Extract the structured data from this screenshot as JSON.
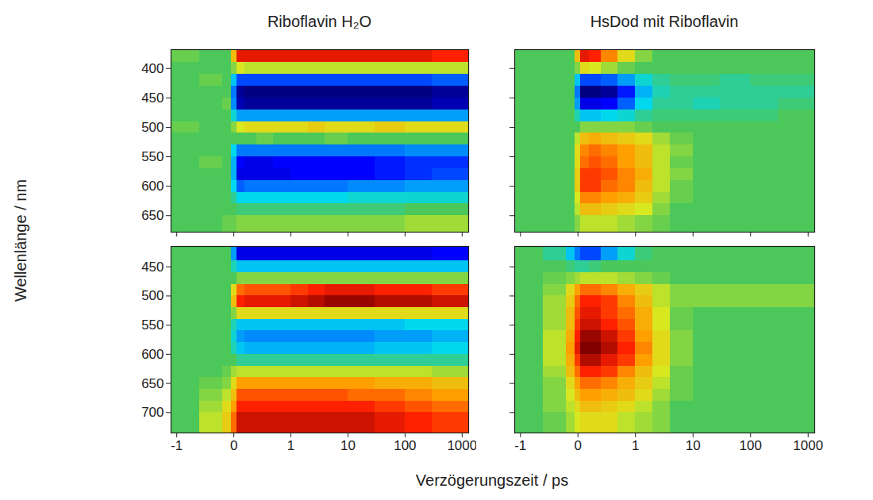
{
  "xlabel": "Verzögerungszeit / ps",
  "ylabel": "Wellenlänge / nm",
  "chart_data": [
    {
      "type": "heatmap",
      "title": "Riboflavin H₂O",
      "x_edges": [
        -1.1,
        -0.6,
        -0.2,
        -0.05,
        0.05,
        0.2,
        0.4,
        0.7,
        1,
        2,
        4,
        10,
        30,
        100,
        300,
        1300
      ],
      "y_edges": [
        368,
        390,
        410,
        430,
        450,
        470,
        490,
        510,
        530,
        550,
        570,
        590,
        610,
        630,
        650,
        678
      ],
      "values": [
        [
          0.05,
          0,
          0,
          0.4,
          0.8,
          0.8,
          0.8,
          0.8,
          0.8,
          0.8,
          0.8,
          0.8,
          0.8,
          0.8,
          0.75
        ],
        [
          0,
          0,
          0,
          0.1,
          0.25,
          0.2,
          0.2,
          0.2,
          0.2,
          0.2,
          0.2,
          0.2,
          0.2,
          0.2,
          0.2
        ],
        [
          0,
          0.05,
          0,
          -0.3,
          -0.6,
          -0.6,
          -0.6,
          -0.6,
          -0.6,
          -0.6,
          -0.6,
          -0.6,
          -0.6,
          -0.6,
          -0.55
        ],
        [
          0,
          0,
          0,
          -0.5,
          -0.95,
          -1,
          -1,
          -1,
          -1,
          -1,
          -1,
          -1,
          -1,
          -1,
          -0.95
        ],
        [
          0,
          0,
          0.05,
          -0.45,
          -0.9,
          -0.95,
          -0.95,
          -0.95,
          -0.95,
          -0.95,
          -0.95,
          -0.95,
          -0.95,
          -0.95,
          -0.9
        ],
        [
          0,
          0,
          0,
          -0.2,
          -0.4,
          -0.4,
          -0.4,
          -0.4,
          -0.4,
          -0.4,
          -0.4,
          -0.4,
          -0.4,
          -0.4,
          -0.4
        ],
        [
          0.05,
          0,
          0,
          0.1,
          0.25,
          0.3,
          0.3,
          0.3,
          0.3,
          0.35,
          0.3,
          0.3,
          0.35,
          0.3,
          0.3
        ],
        [
          0,
          0,
          0,
          0,
          0,
          0,
          0.05,
          0,
          0,
          0,
          0.05,
          0,
          0,
          0,
          0
        ],
        [
          0,
          0,
          0,
          -0.25,
          -0.5,
          -0.5,
          -0.5,
          -0.5,
          -0.5,
          -0.5,
          -0.5,
          -0.5,
          -0.5,
          -0.45,
          -0.45
        ],
        [
          0,
          0.05,
          0,
          -0.35,
          -0.75,
          -0.8,
          -0.8,
          -0.75,
          -0.75,
          -0.75,
          -0.75,
          -0.75,
          -0.7,
          -0.65,
          -0.65
        ],
        [
          0,
          0,
          0,
          -0.35,
          -0.8,
          -0.8,
          -0.8,
          -0.8,
          -0.75,
          -0.75,
          -0.75,
          -0.75,
          -0.7,
          -0.65,
          -0.6
        ],
        [
          0,
          0,
          0,
          -0.25,
          -0.55,
          -0.5,
          -0.5,
          -0.5,
          -0.5,
          -0.5,
          -0.5,
          -0.45,
          -0.45,
          -0.4,
          -0.4
        ],
        [
          0,
          0,
          0,
          -0.1,
          -0.25,
          -0.25,
          -0.25,
          -0.25,
          -0.25,
          -0.25,
          -0.25,
          -0.2,
          -0.2,
          -0.2,
          -0.2
        ],
        [
          0,
          0,
          0,
          0,
          -0.05,
          -0.05,
          -0.05,
          -0.05,
          -0.05,
          -0.05,
          -0.05,
          -0.05,
          -0.05,
          0,
          0
        ],
        [
          0,
          0,
          0.05,
          0.05,
          0.1,
          0.1,
          0.1,
          0.1,
          0.1,
          0.1,
          0.1,
          0.1,
          0.1,
          0.15,
          0.15
        ]
      ],
      "zlim": [
        -1,
        1
      ],
      "xlim": [
        -1.1,
        1300
      ],
      "xticks": [
        -1,
        0,
        1,
        10,
        100,
        1000
      ],
      "ylim": [
        368,
        678
      ],
      "yticks": [
        400,
        450,
        500,
        550,
        600,
        650
      ],
      "tick_labels": "y"
    },
    {
      "type": "heatmap",
      "title": "HsDod mit Riboflavin",
      "x_edges": [
        -1.1,
        -0.6,
        -0.2,
        -0.05,
        0.05,
        0.2,
        0.4,
        0.7,
        1,
        2,
        4,
        10,
        30,
        100,
        300,
        1300
      ],
      "y_edges": [
        368,
        390,
        410,
        430,
        450,
        470,
        490,
        510,
        530,
        550,
        570,
        590,
        610,
        630,
        650,
        678
      ],
      "values": [
        [
          0,
          0,
          0,
          0.4,
          0.8,
          0.75,
          0.55,
          0.3,
          0.1,
          0,
          0,
          0,
          0,
          0,
          0
        ],
        [
          0,
          0,
          0,
          0.1,
          0.3,
          0.25,
          0.15,
          0.05,
          0,
          0,
          0,
          0,
          0,
          0,
          0
        ],
        [
          0,
          0,
          0,
          -0.3,
          -0.6,
          -0.6,
          -0.55,
          -0.4,
          -0.2,
          -0.1,
          -0.05,
          -0.05,
          -0.1,
          -0.05,
          -0.05
        ],
        [
          0,
          0,
          0,
          -0.5,
          -1,
          -1,
          -0.95,
          -0.7,
          -0.35,
          -0.15,
          -0.1,
          -0.1,
          -0.1,
          -0.1,
          -0.1
        ],
        [
          0,
          0,
          0,
          -0.4,
          -0.8,
          -0.8,
          -0.75,
          -0.55,
          -0.25,
          -0.1,
          -0.1,
          -0.15,
          -0.1,
          -0.1,
          -0.05
        ],
        [
          0,
          0,
          0,
          -0.15,
          -0.3,
          -0.3,
          -0.25,
          -0.2,
          -0.1,
          -0.05,
          -0.05,
          -0.05,
          -0.05,
          -0.05,
          0
        ],
        [
          0,
          0,
          0,
          0,
          0.1,
          0.1,
          0.1,
          0.1,
          0.05,
          0,
          0,
          0,
          0,
          0,
          0
        ],
        [
          0,
          0,
          0,
          0.2,
          0.4,
          0.45,
          0.4,
          0.35,
          0.3,
          0.15,
          0.05,
          0,
          0,
          0,
          0
        ],
        [
          0,
          0,
          0,
          0.3,
          0.55,
          0.6,
          0.55,
          0.5,
          0.4,
          0.2,
          0.1,
          0,
          0,
          0,
          0
        ],
        [
          0,
          0,
          0,
          0.3,
          0.6,
          0.65,
          0.6,
          0.5,
          0.4,
          0.2,
          0.05,
          0,
          0,
          0,
          0
        ],
        [
          0,
          0,
          0,
          0.35,
          0.7,
          0.7,
          0.65,
          0.55,
          0.45,
          0.2,
          0.1,
          0,
          0,
          0,
          0
        ],
        [
          0,
          0,
          0,
          0.35,
          0.7,
          0.7,
          0.6,
          0.55,
          0.4,
          0.2,
          0.05,
          0,
          0,
          0,
          0
        ],
        [
          0,
          0,
          0,
          0.25,
          0.55,
          0.55,
          0.5,
          0.45,
          0.35,
          0.15,
          0.05,
          0,
          0,
          0,
          0
        ],
        [
          0,
          0,
          0,
          0.2,
          0.4,
          0.4,
          0.35,
          0.3,
          0.25,
          0.1,
          0,
          0,
          0,
          0,
          0
        ],
        [
          0,
          0,
          0,
          0.1,
          0.2,
          0.2,
          0.2,
          0.15,
          0.1,
          0.05,
          0,
          0,
          0,
          0,
          0
        ]
      ],
      "zlim": [
        -1,
        1
      ],
      "xlim": [
        -1.1,
        1300
      ],
      "xticks": [
        -1,
        0,
        1,
        10,
        100,
        1000
      ],
      "ylim": [
        368,
        678
      ],
      "yticks": [
        400,
        450,
        500,
        550,
        600,
        650
      ],
      "tick_labels": false
    },
    {
      "type": "heatmap",
      "x_edges": [
        -1.1,
        -0.6,
        -0.2,
        -0.05,
        0.05,
        0.2,
        0.4,
        0.7,
        1,
        2,
        4,
        10,
        30,
        100,
        300,
        1300
      ],
      "y_edges": [
        415,
        440,
        460,
        480,
        500,
        520,
        540,
        560,
        580,
        600,
        620,
        640,
        660,
        680,
        700,
        735
      ],
      "values": [
        [
          0,
          0,
          0,
          -0.4,
          -0.8,
          -0.8,
          -0.8,
          -0.8,
          -0.8,
          -0.8,
          -0.8,
          -0.8,
          -0.8,
          -0.8,
          -0.75
        ],
        [
          0,
          0,
          0,
          -0.15,
          -0.3,
          -0.3,
          -0.3,
          -0.3,
          -0.3,
          -0.3,
          -0.3,
          -0.3,
          -0.3,
          -0.3,
          -0.3
        ],
        [
          0,
          0,
          0,
          0,
          0.1,
          0.1,
          0.1,
          0.1,
          0.1,
          0.1,
          0.1,
          0.1,
          0.1,
          0.1,
          0.1
        ],
        [
          0,
          0,
          0,
          0.3,
          0.6,
          0.65,
          0.65,
          0.65,
          0.7,
          0.75,
          0.8,
          0.8,
          0.75,
          0.75,
          0.7
        ],
        [
          0,
          0,
          0,
          0.4,
          0.75,
          0.8,
          0.8,
          0.8,
          0.85,
          0.9,
          0.95,
          0.95,
          0.9,
          0.9,
          0.85
        ],
        [
          0,
          0,
          0,
          0.1,
          0.3,
          0.3,
          0.3,
          0.3,
          0.3,
          0.3,
          0.3,
          0.3,
          0.3,
          0.3,
          0.3
        ],
        [
          0,
          0,
          0,
          -0.15,
          -0.3,
          -0.3,
          -0.3,
          -0.3,
          -0.3,
          -0.3,
          -0.3,
          -0.3,
          -0.3,
          -0.25,
          -0.25
        ],
        [
          0,
          0,
          0,
          -0.2,
          -0.4,
          -0.45,
          -0.45,
          -0.45,
          -0.45,
          -0.45,
          -0.45,
          -0.45,
          -0.4,
          -0.4,
          -0.35
        ],
        [
          0,
          0,
          0,
          -0.15,
          -0.3,
          -0.35,
          -0.35,
          -0.35,
          -0.35,
          -0.35,
          -0.35,
          -0.35,
          -0.3,
          -0.3,
          -0.25
        ],
        [
          0,
          0,
          0,
          0,
          -0.1,
          -0.1,
          -0.1,
          -0.1,
          -0.1,
          -0.1,
          -0.1,
          -0.1,
          -0.1,
          -0.1,
          -0.1
        ],
        [
          0,
          0,
          0.05,
          0.15,
          0.2,
          0.2,
          0.2,
          0.2,
          0.2,
          0.2,
          0.2,
          0.2,
          0.2,
          0.2,
          0.15
        ],
        [
          0,
          0.05,
          0.1,
          0.3,
          0.5,
          0.5,
          0.5,
          0.5,
          0.5,
          0.5,
          0.5,
          0.5,
          0.45,
          0.45,
          0.4
        ],
        [
          0,
          0.1,
          0.2,
          0.4,
          0.65,
          0.65,
          0.65,
          0.65,
          0.65,
          0.65,
          0.65,
          0.6,
          0.6,
          0.55,
          0.5
        ],
        [
          0,
          0.15,
          0.3,
          0.5,
          0.75,
          0.75,
          0.75,
          0.75,
          0.75,
          0.75,
          0.75,
          0.75,
          0.7,
          0.65,
          0.6
        ],
        [
          0,
          0.2,
          0.35,
          0.6,
          0.85,
          0.85,
          0.85,
          0.85,
          0.85,
          0.85,
          0.85,
          0.85,
          0.8,
          0.75,
          0.7
        ]
      ],
      "zlim": [
        -1,
        1
      ],
      "xlim": [
        -1.1,
        1300
      ],
      "xticks": [
        -1,
        0,
        1,
        10,
        100,
        1000
      ],
      "ylim": [
        415,
        735
      ],
      "yticks": [
        450,
        500,
        550,
        600,
        650,
        700
      ]
    },
    {
      "type": "heatmap",
      "x_edges": [
        -1.1,
        -0.6,
        -0.2,
        -0.05,
        0.05,
        0.2,
        0.4,
        0.7,
        1,
        2,
        4,
        10,
        30,
        100,
        300,
        1300
      ],
      "y_edges": [
        415,
        440,
        460,
        480,
        500,
        520,
        540,
        560,
        580,
        600,
        620,
        640,
        660,
        680,
        700,
        735
      ],
      "values": [
        [
          0,
          -0.1,
          -0.3,
          -0.5,
          -0.6,
          -0.6,
          -0.4,
          -0.2,
          -0.05,
          0,
          0,
          0,
          0,
          0,
          0
        ],
        [
          0,
          0,
          -0.05,
          -0.1,
          -0.1,
          -0.05,
          0,
          0,
          0,
          0,
          0,
          0,
          0,
          0,
          0
        ],
        [
          0,
          0.05,
          0.1,
          0.15,
          0.2,
          0.2,
          0.2,
          0.15,
          0.1,
          0.05,
          0,
          0,
          0,
          0,
          0
        ],
        [
          0,
          0.1,
          0.3,
          0.5,
          0.6,
          0.6,
          0.55,
          0.45,
          0.35,
          0.2,
          0.1,
          0.1,
          0.1,
          0.1,
          0.1
        ],
        [
          0,
          0.15,
          0.35,
          0.6,
          0.75,
          0.75,
          0.7,
          0.55,
          0.4,
          0.2,
          0.1,
          0.1,
          0.1,
          0.1,
          0.1
        ],
        [
          0,
          0.15,
          0.4,
          0.65,
          0.8,
          0.8,
          0.7,
          0.6,
          0.45,
          0.25,
          0.05,
          0,
          0,
          0,
          0
        ],
        [
          0,
          0.15,
          0.4,
          0.7,
          0.85,
          0.85,
          0.75,
          0.65,
          0.45,
          0.25,
          0.05,
          0,
          0,
          0,
          0
        ],
        [
          0,
          0.2,
          0.45,
          0.75,
          0.95,
          0.95,
          0.85,
          0.7,
          0.5,
          0.3,
          0.1,
          0,
          0,
          0,
          0
        ],
        [
          0,
          0.2,
          0.5,
          0.8,
          1,
          1,
          0.9,
          0.75,
          0.55,
          0.3,
          0.1,
          0,
          0,
          0,
          0
        ],
        [
          0,
          0.2,
          0.45,
          0.7,
          0.9,
          0.9,
          0.8,
          0.7,
          0.5,
          0.3,
          0.1,
          0,
          0,
          0,
          0
        ],
        [
          0,
          0.15,
          0.4,
          0.6,
          0.75,
          0.75,
          0.7,
          0.55,
          0.4,
          0.25,
          0.05,
          0,
          0,
          0,
          0
        ],
        [
          0,
          0.1,
          0.3,
          0.5,
          0.6,
          0.6,
          0.55,
          0.45,
          0.35,
          0.2,
          0.05,
          0,
          0,
          0,
          0
        ],
        [
          0,
          0.1,
          0.25,
          0.4,
          0.5,
          0.5,
          0.45,
          0.4,
          0.3,
          0.15,
          0.05,
          0,
          0,
          0,
          0
        ],
        [
          0,
          0.1,
          0.2,
          0.3,
          0.4,
          0.4,
          0.35,
          0.3,
          0.2,
          0.1,
          0,
          0,
          0,
          0,
          0
        ],
        [
          0,
          0.05,
          0.15,
          0.25,
          0.3,
          0.3,
          0.3,
          0.2,
          0.15,
          0.1,
          0,
          0,
          0,
          0,
          0
        ]
      ],
      "zlim": [
        -1,
        1
      ],
      "xlim": [
        -1.1,
        1300
      ],
      "xticks": [
        -1,
        0,
        1,
        10,
        100,
        1000
      ],
      "ylim": [
        415,
        735
      ],
      "yticks": [
        450,
        500,
        550,
        600,
        650,
        700
      ],
      "tick_labels": "x"
    }
  ]
}
